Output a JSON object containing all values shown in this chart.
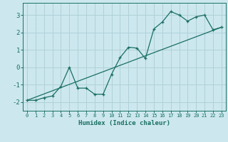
{
  "xlabel": "Humidex (Indice chaleur)",
  "background_color": "#cce8ee",
  "grid_color": "#b0d0d8",
  "line_color": "#1a6e64",
  "xlim": [
    -0.5,
    23.5
  ],
  "ylim": [
    -2.5,
    3.7
  ],
  "x_ticks": [
    0,
    1,
    2,
    3,
    4,
    5,
    6,
    7,
    8,
    9,
    10,
    11,
    12,
    13,
    14,
    15,
    16,
    17,
    18,
    19,
    20,
    21,
    22,
    23
  ],
  "y_ticks": [
    -2,
    -1,
    0,
    1,
    2,
    3
  ],
  "line1_x": [
    0,
    1,
    2,
    3,
    4,
    5,
    6,
    7,
    8,
    9,
    10,
    11,
    12,
    13,
    14,
    15,
    16,
    17,
    18,
    19,
    20,
    21,
    22,
    23
  ],
  "line1_y": [
    -1.9,
    -1.9,
    -1.75,
    -1.65,
    -1.1,
    0.0,
    -1.2,
    -1.2,
    -1.55,
    -1.55,
    -0.4,
    0.55,
    1.15,
    1.1,
    0.5,
    2.2,
    2.6,
    3.2,
    3.0,
    2.65,
    2.9,
    3.0,
    2.15,
    2.3
  ],
  "line2_x": [
    0,
    23
  ],
  "line2_y": [
    -1.9,
    2.3
  ],
  "marker": "+"
}
